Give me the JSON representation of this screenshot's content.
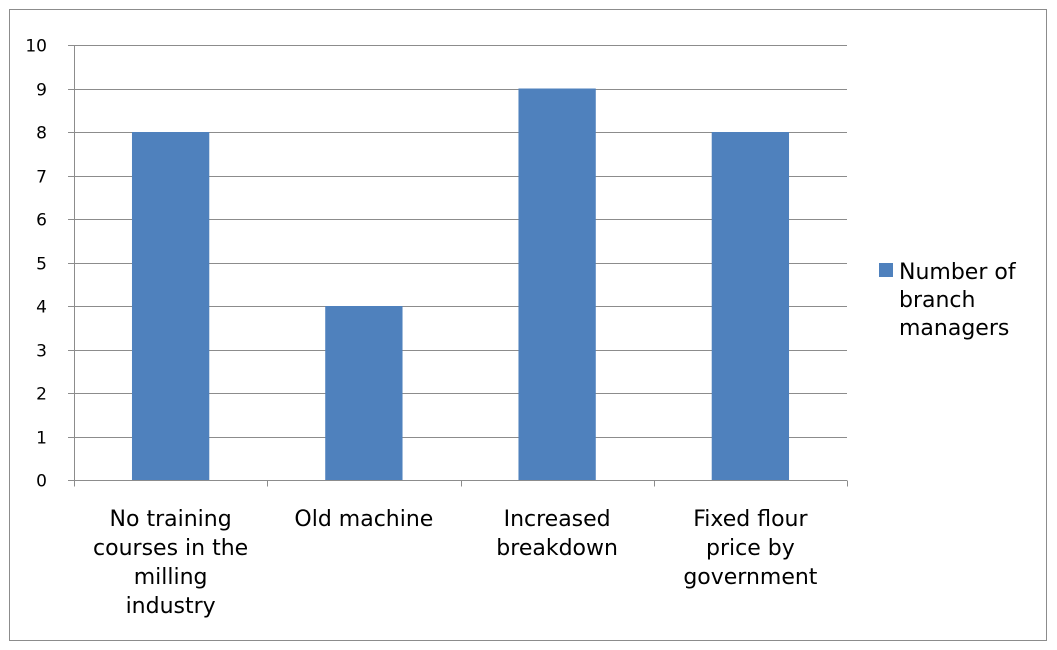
{
  "chart_data": {
    "type": "bar",
    "categories": [
      [
        "No training",
        "courses in the",
        "milling",
        "industry"
      ],
      [
        "Old machine"
      ],
      [
        "Increased",
        "breakdown"
      ],
      [
        "Fixed flour",
        "price by",
        "government"
      ]
    ],
    "series": [
      {
        "name": [
          "Number of",
          "branch",
          "managers"
        ],
        "values": [
          8,
          4,
          9,
          8
        ],
        "color": "#4f81bd"
      }
    ],
    "ylim": [
      0,
      10
    ],
    "yticks": [
      "0",
      "1",
      "2",
      "3",
      "4",
      "5",
      "6",
      "7",
      "8",
      "9",
      "10"
    ],
    "grid": true,
    "legend_position": "right",
    "title": "",
    "xlabel": "",
    "ylabel": ""
  }
}
